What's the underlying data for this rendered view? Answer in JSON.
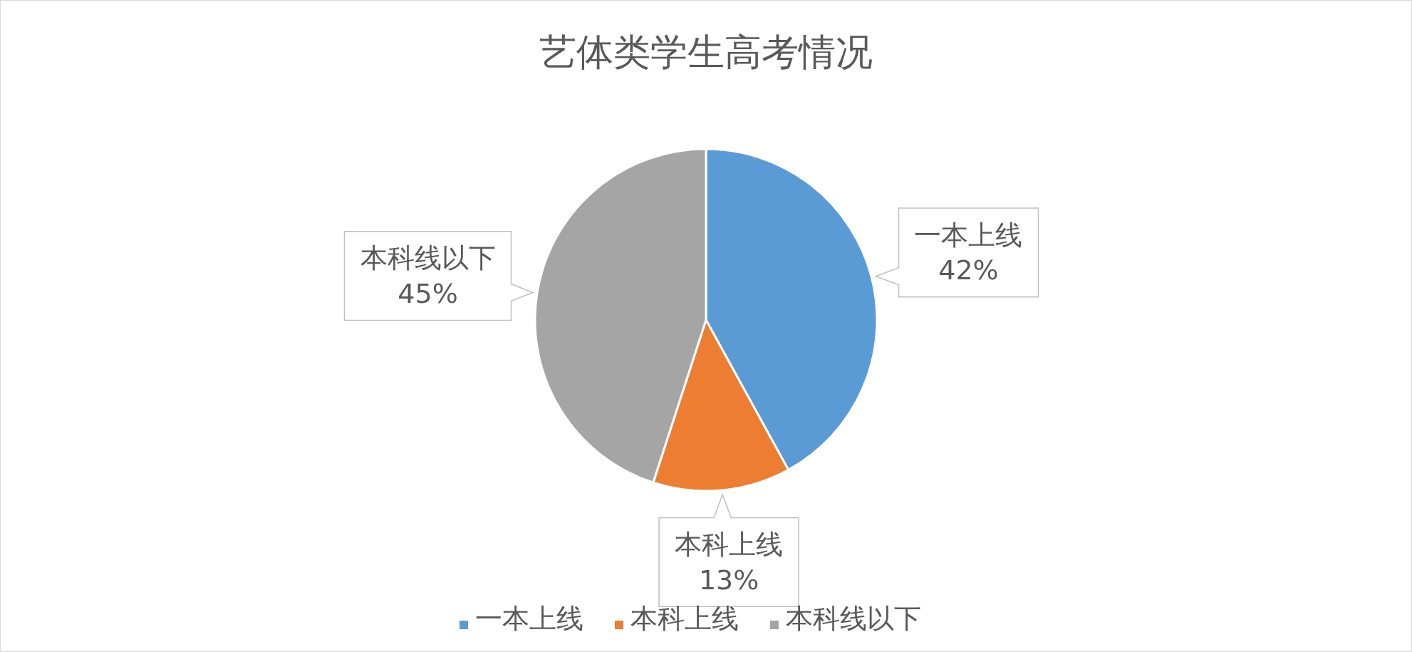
{
  "chart_data": {
    "type": "pie",
    "title": "艺体类学生高考情况",
    "categories": [
      "一本上线",
      "本科上线",
      "本科线以下"
    ],
    "values": [
      42,
      13,
      45
    ],
    "colors": [
      "#5b9bd5",
      "#ed7d31",
      "#a5a5a5"
    ],
    "value_labels": [
      "42%",
      "13%",
      "45%"
    ],
    "legend": "bottom"
  }
}
